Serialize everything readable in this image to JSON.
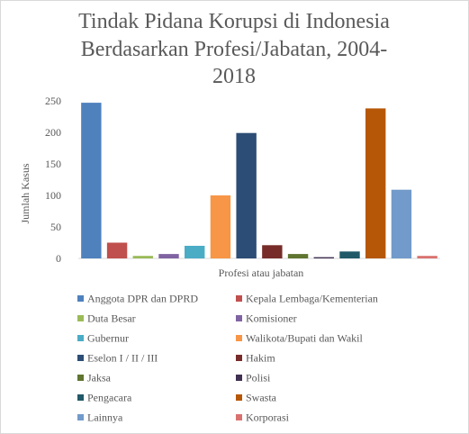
{
  "chart_data": {
    "type": "bar",
    "title_lines": [
      "Tindak Pidana Korupsi di Indonesia",
      "Berdasarkan Profesi/Jabatan, 2004-",
      "2018"
    ],
    "xlabel": "Profesi atau jabatan",
    "ylabel": "Jumlah Kasus",
    "ylim": [
      0,
      250
    ],
    "yticks": [
      0,
      50,
      100,
      150,
      200,
      250
    ],
    "grid": false,
    "legend_position": "bottom",
    "series": [
      {
        "name": "Anggota DPR dan DPRD",
        "value": 247,
        "color": "#4f81bd"
      },
      {
        "name": "Kepala Lembaga/Kementerian",
        "value": 25,
        "color": "#c0504d"
      },
      {
        "name": "Duta Besar",
        "value": 4,
        "color": "#9bbb59"
      },
      {
        "name": "Komisioner",
        "value": 7,
        "color": "#8064a2"
      },
      {
        "name": "Gubernur",
        "value": 20,
        "color": "#4bacc6"
      },
      {
        "name": "Walikota/Bupati dan Wakil",
        "value": 100,
        "color": "#f79646"
      },
      {
        "name": "Eselon I / II / III",
        "value": 199,
        "color": "#2c4d75"
      },
      {
        "name": "Hakim",
        "value": 21,
        "color": "#772c2a"
      },
      {
        "name": "Jaksa",
        "value": 7,
        "color": "#5f7530"
      },
      {
        "name": "Polisi",
        "value": 2,
        "color": "#403152"
      },
      {
        "name": "Pengacara",
        "value": 11,
        "color": "#215968"
      },
      {
        "name": "Swasta",
        "value": 238,
        "color": "#b65708"
      },
      {
        "name": "Lainnya",
        "value": 109,
        "color": "#729aca"
      },
      {
        "name": "Korporasi",
        "value": 4,
        "color": "#d9726f"
      }
    ]
  }
}
